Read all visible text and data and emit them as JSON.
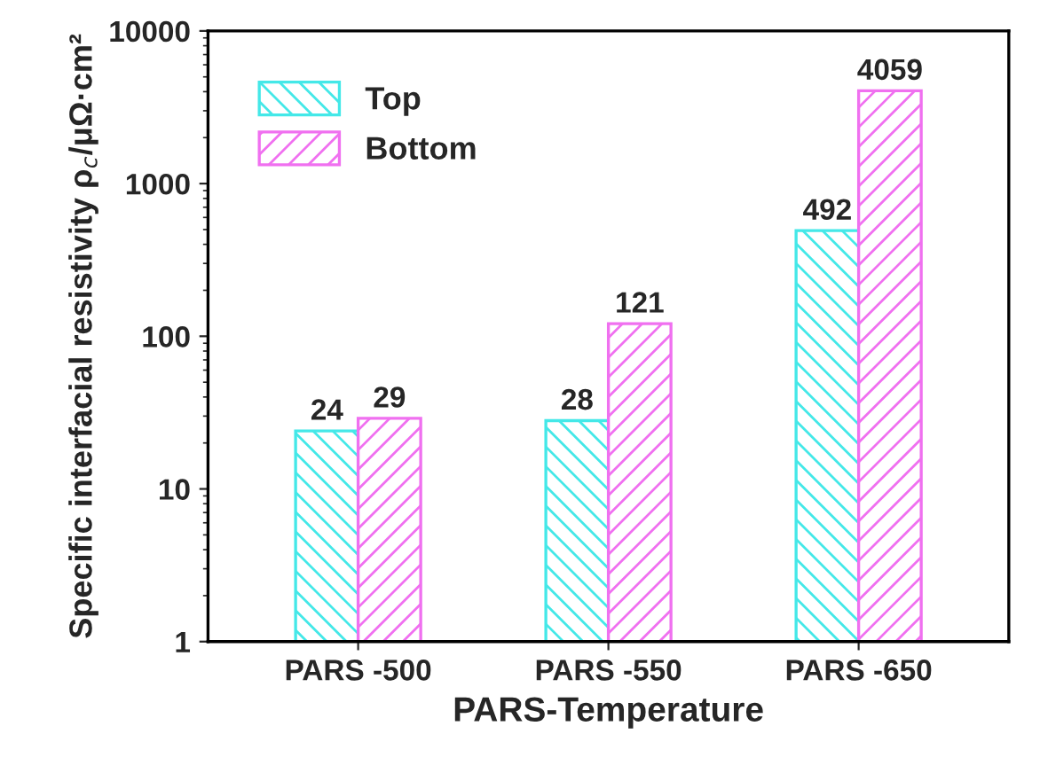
{
  "chart_data": {
    "type": "bar",
    "xlabel": "PARS-Temperature",
    "ylabel": "Specific interfacial resistivity ρ$_{c}$/μΩ·cm²",
    "categories": [
      "PARS -500",
      "PARS -550",
      "PARS -650"
    ],
    "series": [
      {
        "name": "Top",
        "color": "#44e8e8",
        "values": [
          24,
          28,
          492
        ]
      },
      {
        "name": "Bottom",
        "color": "#f070f0",
        "values": [
          29,
          121,
          4059
        ]
      }
    ],
    "log": true,
    "ylim": [
      1,
      10000
    ],
    "yticks": [
      1,
      10,
      100,
      1000,
      10000
    ],
    "data_labels": true,
    "legend": "top left",
    "grid": false
  }
}
